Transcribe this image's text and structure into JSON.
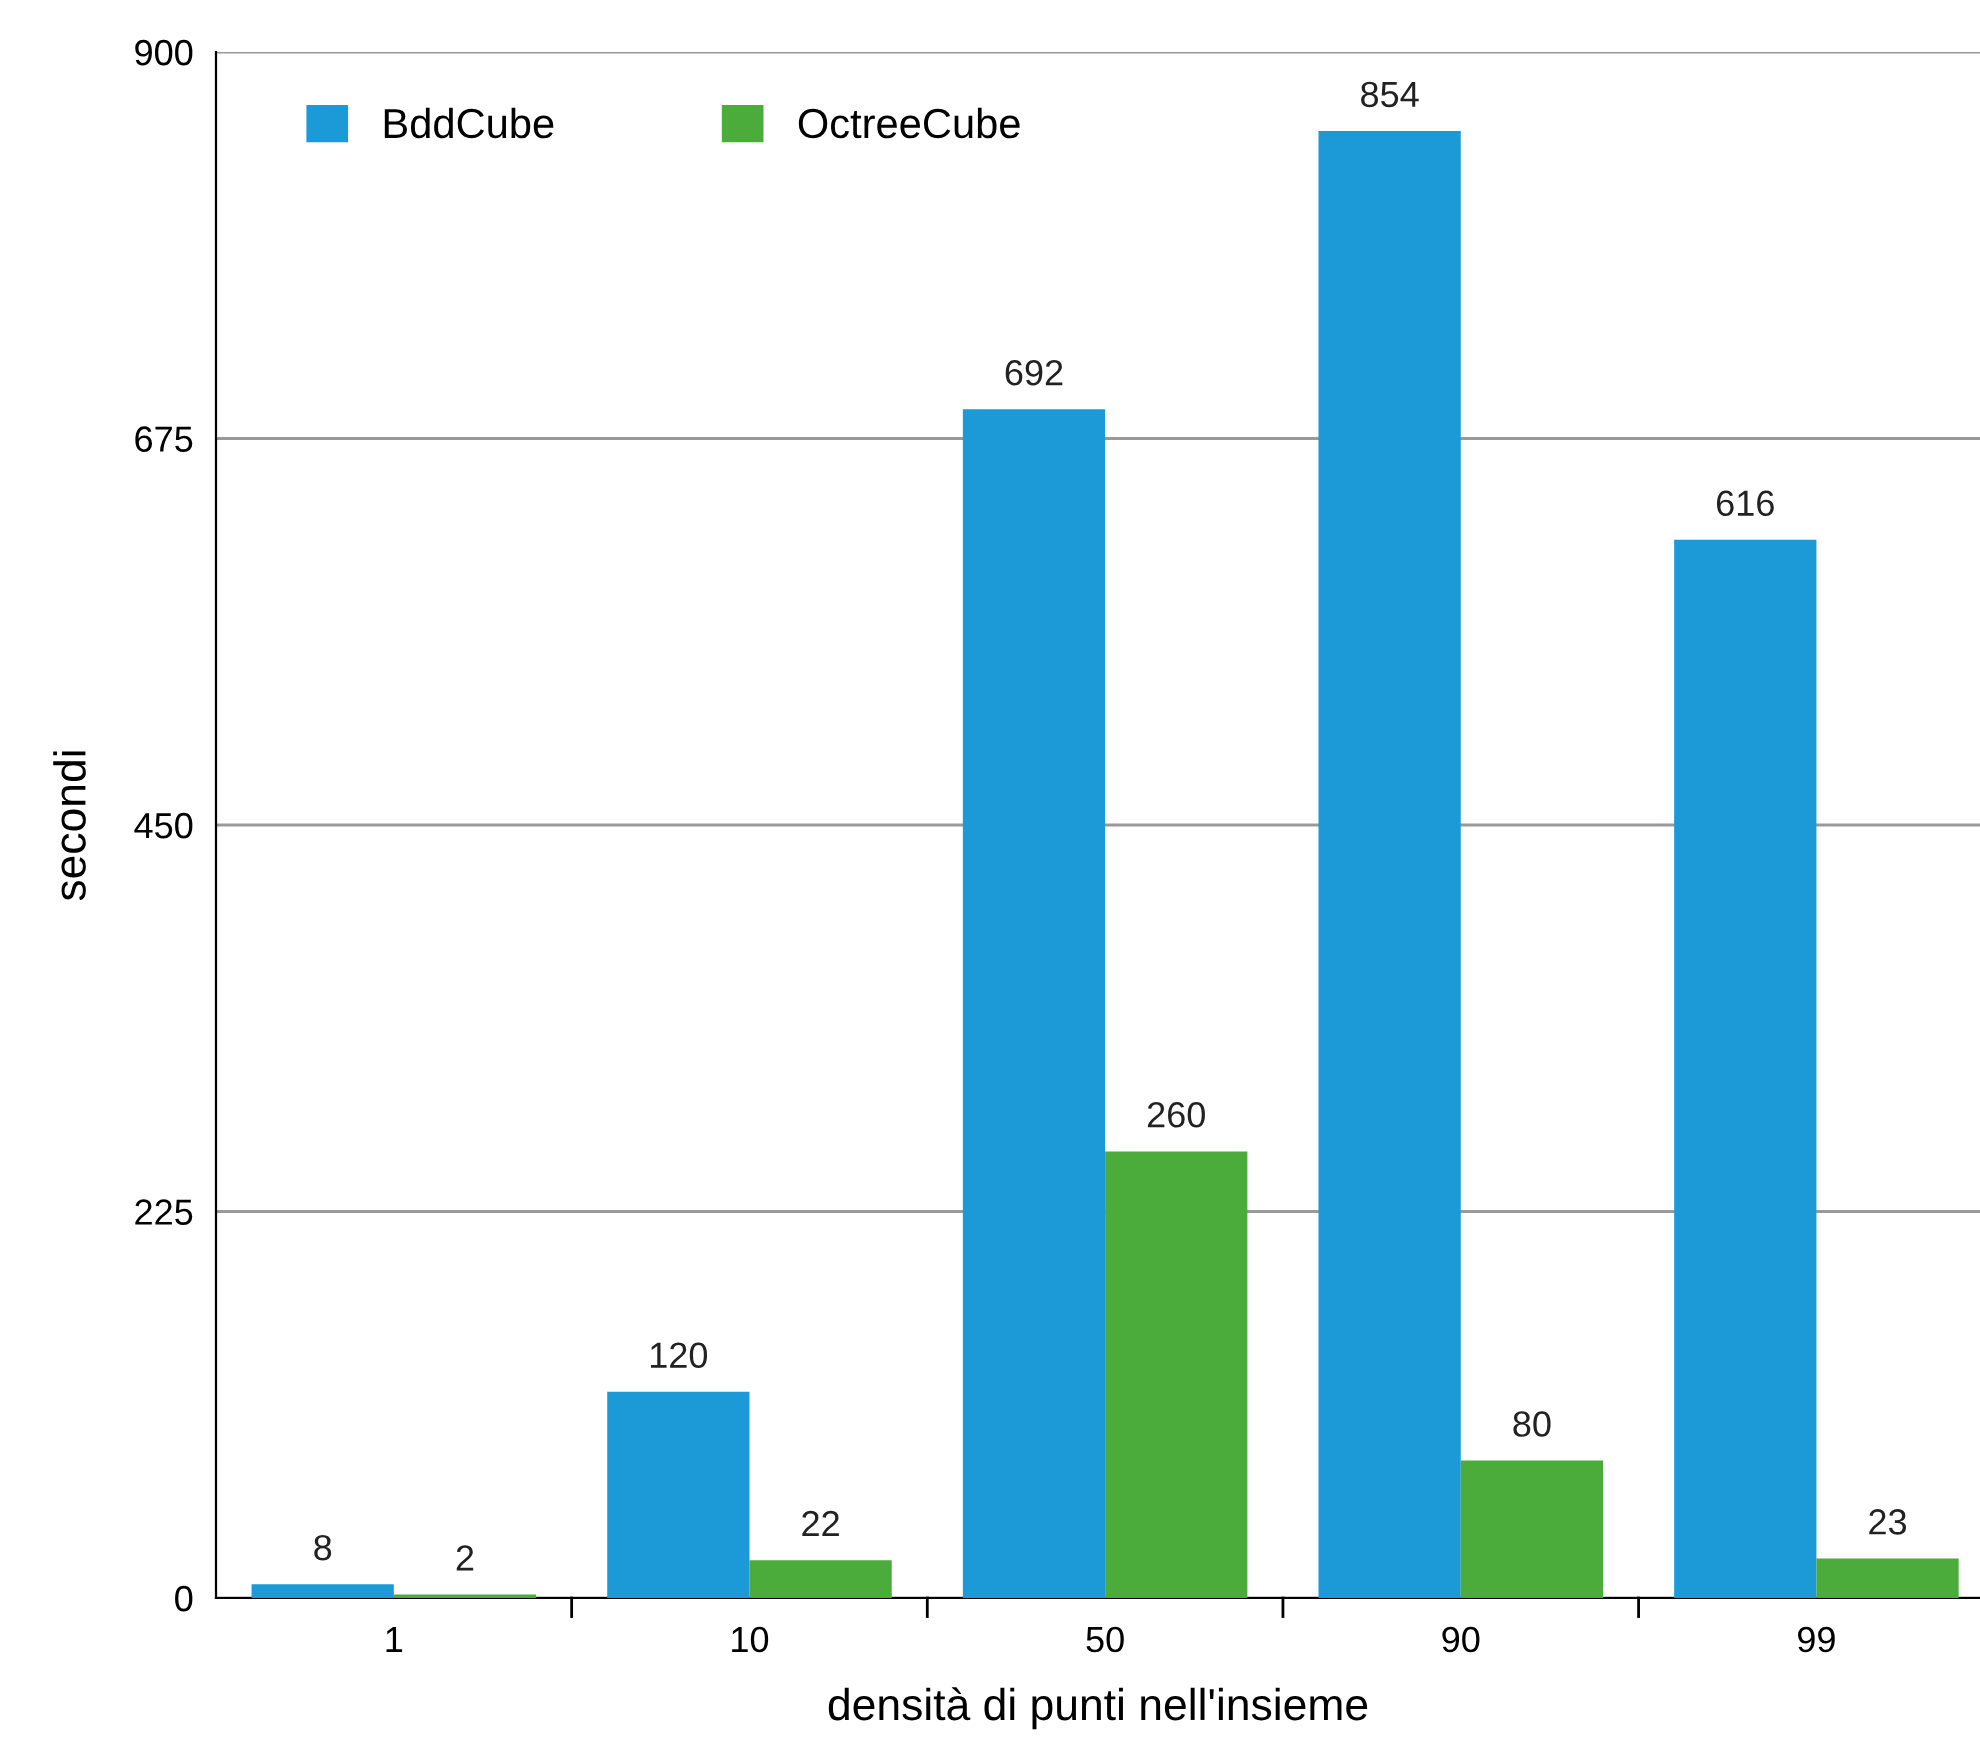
{
  "chart_data": {
    "type": "bar",
    "xlabel": "densità di punti nell'insieme",
    "ylabel": "secondi",
    "categories": [
      "1",
      "10",
      "50",
      "90",
      "99"
    ],
    "series": [
      {
        "name": "BddCube",
        "color": "#1b9ad7",
        "values": [
          8,
          120,
          692,
          854,
          616
        ]
      },
      {
        "name": "OctreeCube",
        "color": "#4bab3b",
        "values": [
          2,
          22,
          260,
          80,
          23
        ]
      }
    ],
    "ylim": [
      0,
      900
    ],
    "yticks": [
      0,
      225,
      450,
      675,
      900
    ],
    "grid": "y",
    "legend": "top left",
    "data_labels": true
  }
}
